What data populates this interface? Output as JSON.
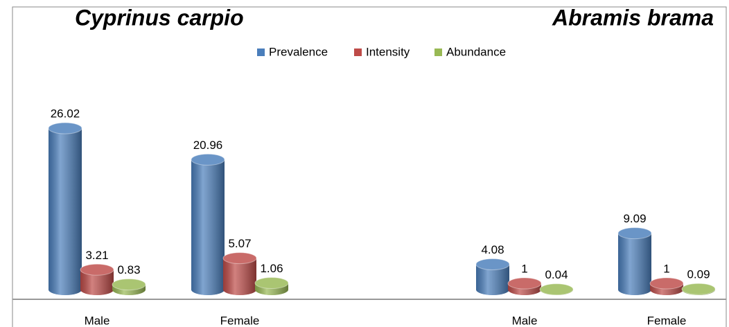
{
  "chart_data": {
    "type": "bar",
    "annotations": [
      "Cyprinus carpio",
      "Abramis brama"
    ],
    "categories": [
      "Male",
      "Female",
      "Male",
      "Female"
    ],
    "series": [
      {
        "name": "Prevalence",
        "color": "#4a7ebb",
        "values": [
          26.02,
          20.96,
          4.08,
          9.09
        ]
      },
      {
        "name": "Intensity",
        "color": "#be4b48",
        "values": [
          3.21,
          5.07,
          1,
          1
        ]
      },
      {
        "name": "Abundance",
        "color": "#98b954",
        "values": [
          0.83,
          1.06,
          0.04,
          0.09
        ]
      }
    ],
    "legend": "top"
  }
}
